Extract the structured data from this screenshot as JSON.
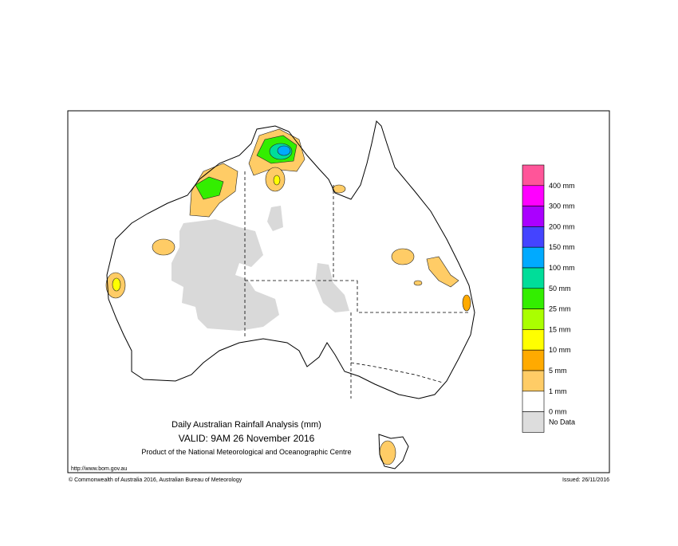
{
  "title": "Daily Australian Rainfall Analysis (mm)",
  "valid": "VALID: 9AM 26 November 2016",
  "product": "Product of the National Meteorological and Oceanographic Centre",
  "url": "http://www.bom.gov.au",
  "copyright": "© Commonwealth of Australia 2016, Australian Bureau of Meteorology",
  "issued": "Issued: 26/11/2016",
  "legend": {
    "colors": [
      "#ff5599",
      "#ff00ff",
      "#aa00ff",
      "#4444ff",
      "#00aaff",
      "#00dd99",
      "#33ee00",
      "#aaff00",
      "#ffff00",
      "#ffaa00",
      "#ffcc66",
      "#ffffff",
      "#dddddd"
    ],
    "labels": [
      "400 mm",
      "300 mm",
      "200 mm",
      "150 mm",
      "100 mm",
      "50 mm",
      "25 mm",
      "15 mm",
      "10 mm",
      "5 mm",
      "1 mm",
      "0 mm",
      "No Data"
    ]
  }
}
